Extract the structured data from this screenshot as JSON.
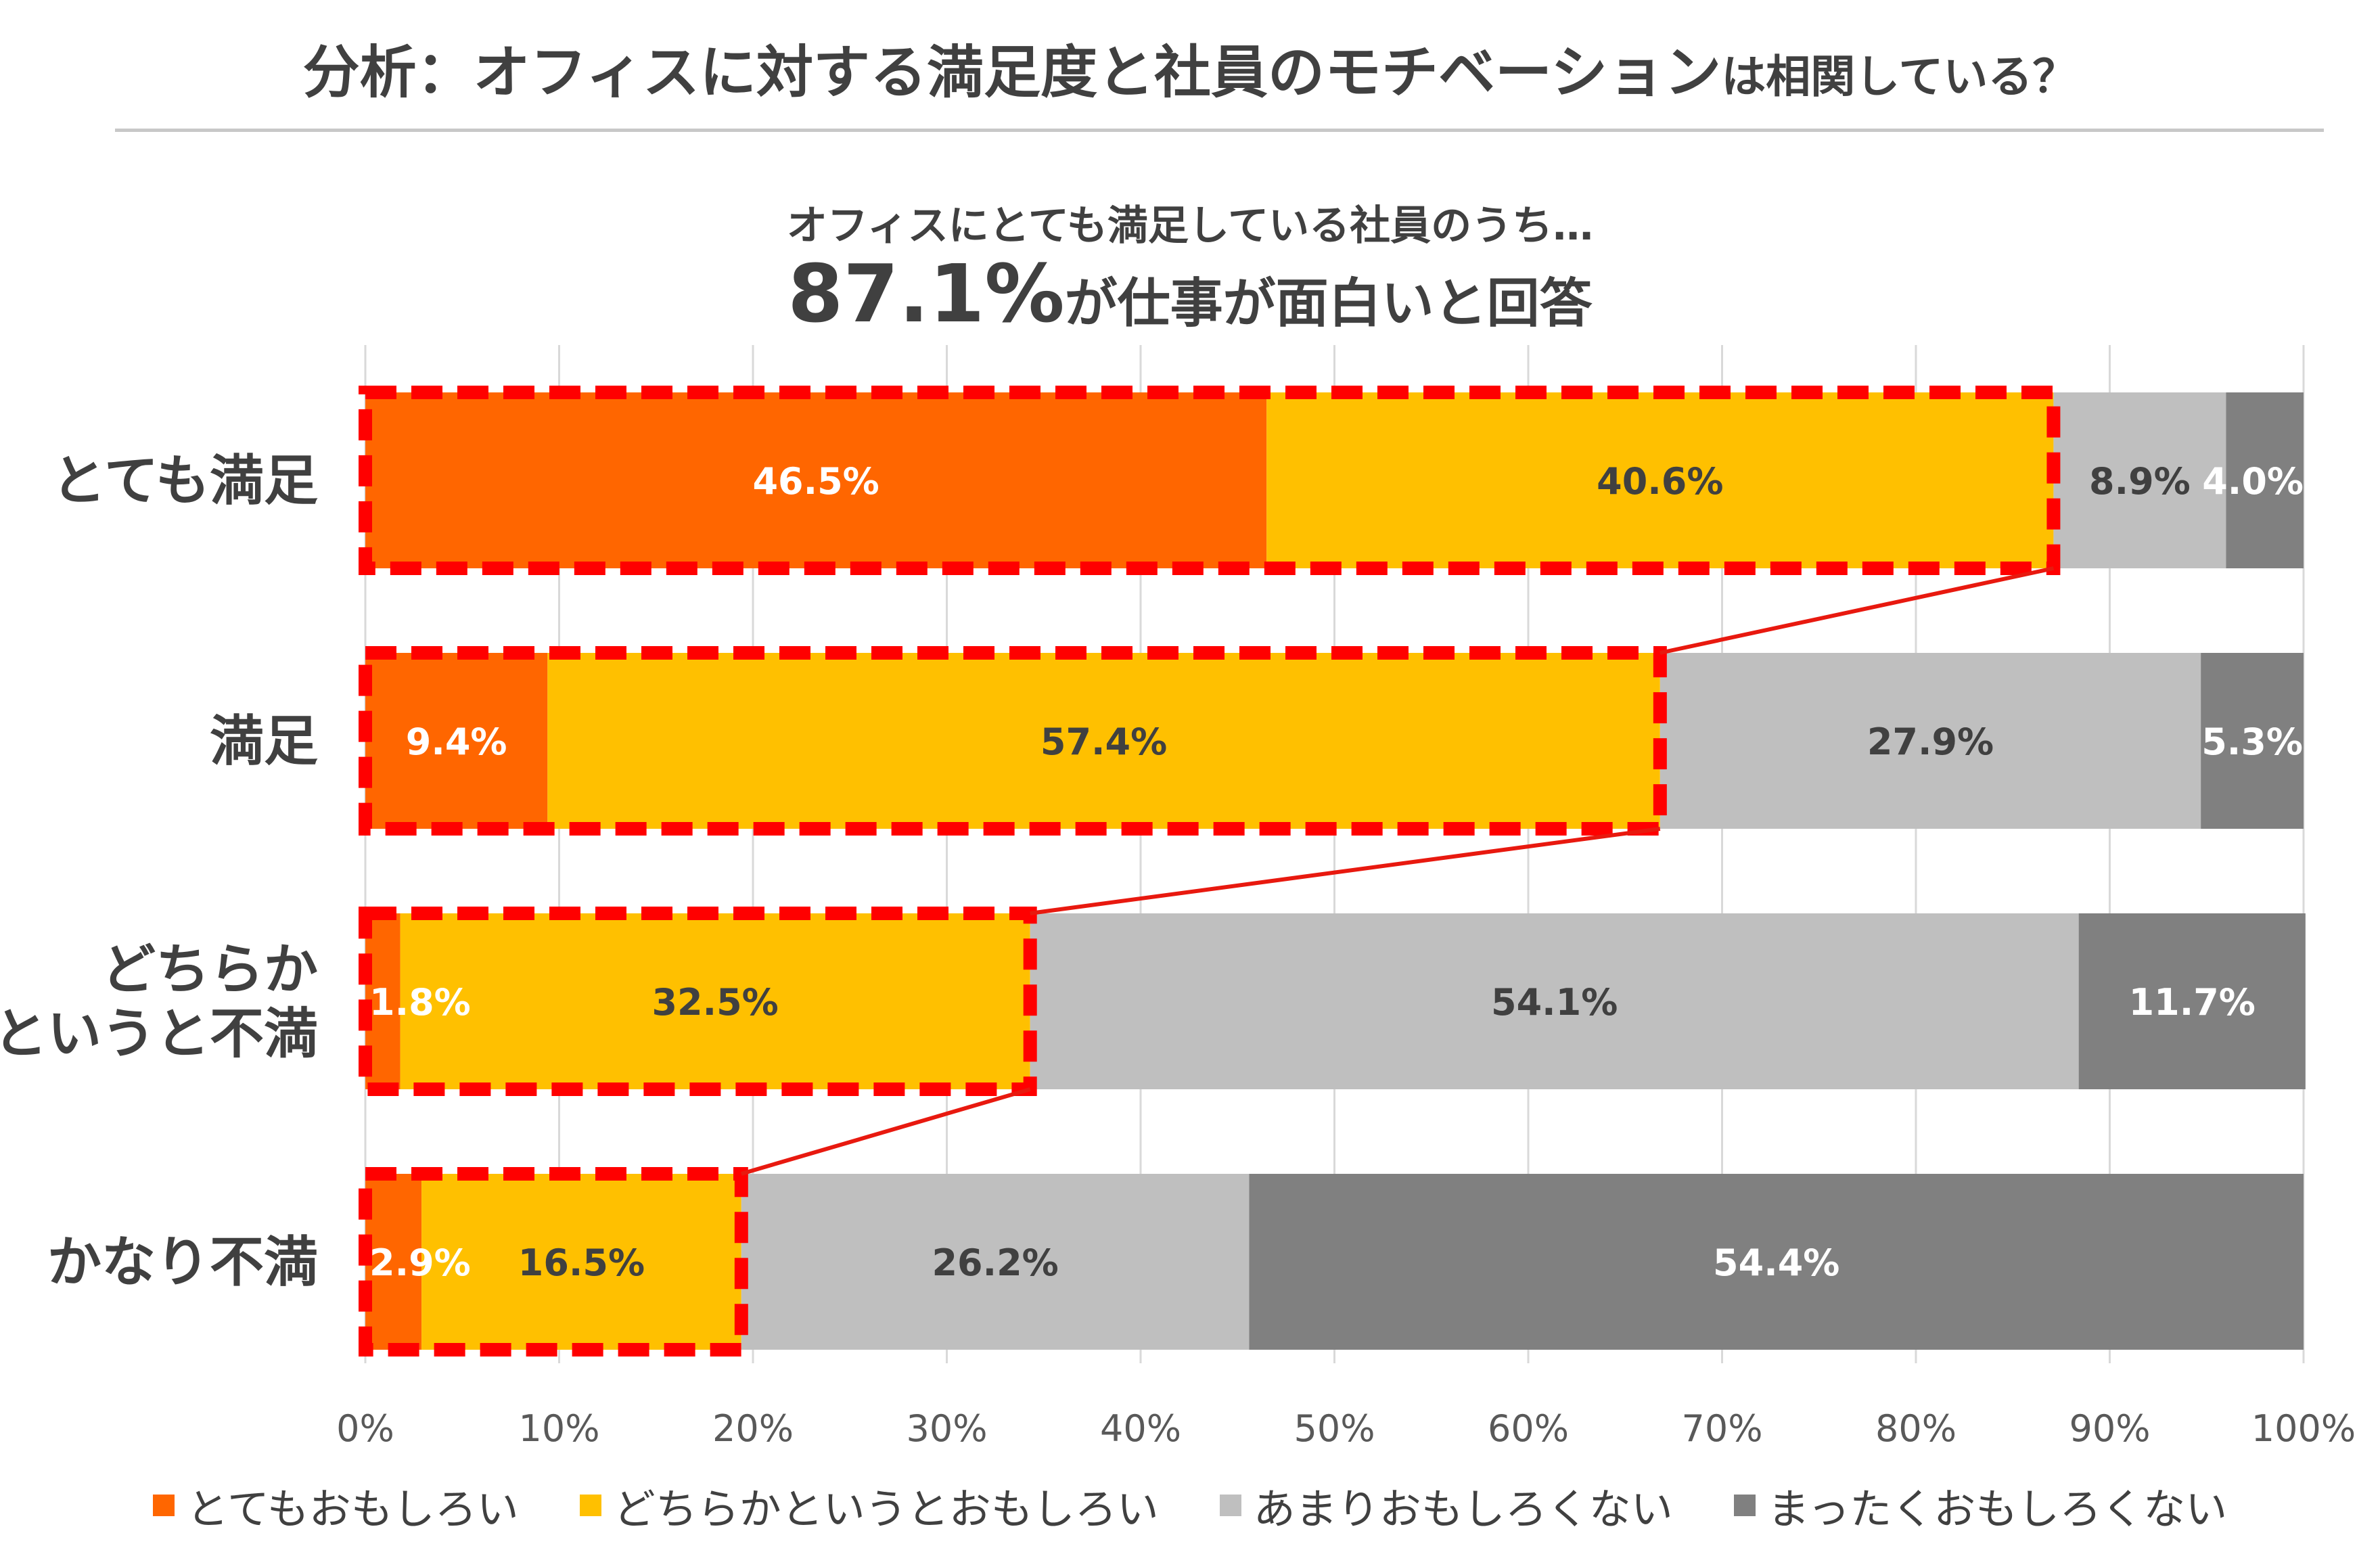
{
  "title": {
    "main": "分析：オフィスに対する満足度と社員のモチベーション",
    "suffix": "は相関している？"
  },
  "subtitle": {
    "line1": "オフィスにとても満足している社員のうち…",
    "highlight": "87.1%",
    "line2_rest": "が仕事が面白いと回答"
  },
  "colors": {
    "very_interesting": "#ff6600",
    "somewhat_interesting": "#ffc000",
    "not_very_interesting": "#bfbfbf",
    "not_at_all_interesting": "#808080",
    "highlight_border": "#ff0000",
    "connector": "#e8190f"
  },
  "chart_data": {
    "type": "bar",
    "orientation": "horizontal",
    "stacked": "percent",
    "categories": [
      "とても満足",
      "満足",
      "どちらかというと不満",
      "かなり不満"
    ],
    "category_labels": [
      [
        "とても満足"
      ],
      [
        "満足"
      ],
      [
        "どちらか",
        "というと不満"
      ],
      [
        "かなり不満"
      ]
    ],
    "series": [
      {
        "name": "とてもおもしろい",
        "values": [
          46.5,
          9.4,
          1.8,
          2.9
        ],
        "labels": [
          "46.5%",
          "9.4%",
          "1.8%",
          "2.9%"
        ]
      },
      {
        "name": "どちらかというとおもしろい",
        "values": [
          40.6,
          57.4,
          32.5,
          16.5
        ],
        "labels": [
          "40.6%",
          "57.4%",
          "32.5%",
          "16.5%"
        ]
      },
      {
        "name": "あまりおもしろくない",
        "values": [
          8.9,
          27.9,
          54.1,
          26.2
        ],
        "labels": [
          "8.9%",
          "27.9%",
          "54.1%",
          "26.2%"
        ]
      },
      {
        "name": "まったくおもしろくない",
        "values": [
          4.0,
          5.3,
          11.7,
          54.4
        ],
        "labels": [
          "4.0%",
          "5.3%",
          "11.7%",
          "54.4%"
        ]
      }
    ],
    "xlim": [
      0,
      100
    ],
    "xticks": [
      "0%",
      "10%",
      "20%",
      "30%",
      "40%",
      "50%",
      "60%",
      "70%",
      "80%",
      "90%",
      "100%"
    ],
    "grid": true,
    "legend_position": "bottom",
    "highlight": "first two series of each row outlined with red dashed boxes, connected by red lines"
  }
}
